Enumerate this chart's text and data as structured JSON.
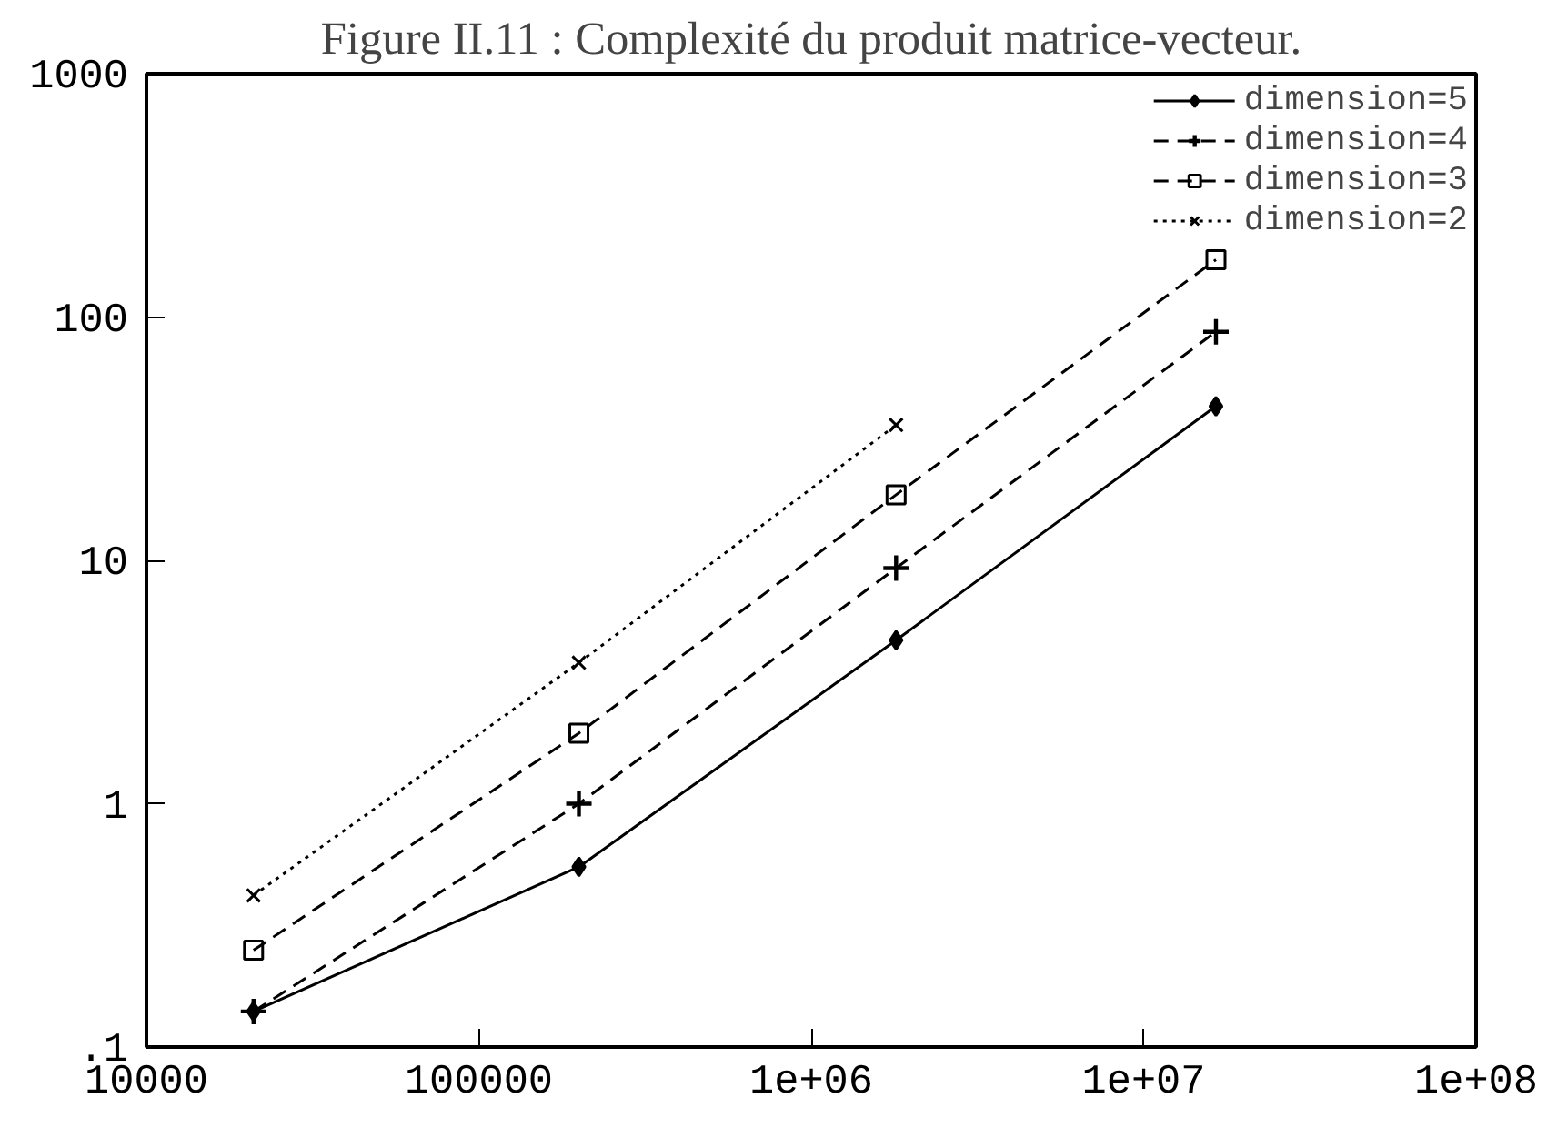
{
  "chart_data": {
    "type": "line",
    "title": "Figure II.11 : Complexité du produit matrice-vecteur.",
    "log": "xy",
    "xlim": [
      10000,
      100000000
    ],
    "ylim": [
      0.1,
      1000
    ],
    "xticks": [
      10000,
      100000,
      {
        "value": 1000000,
        "label": "1e+06"
      },
      {
        "value": 10000000,
        "label": "1e+07"
      },
      {
        "value": 100000000,
        "label": "1e+08"
      }
    ],
    "yticks": [
      {
        "value": 0.1,
        "label": ".1"
      },
      1,
      10,
      100,
      1000
    ],
    "grid": false,
    "legend": "top right",
    "series": [
      {
        "name": "dimension=5",
        "color": "#000000",
        "marker": "diamond",
        "line_style": "solid",
        "x": [
          21000,
          200000,
          1800000,
          16500000
        ],
        "values": [
          0.14,
          0.55,
          4.7,
          43
        ]
      },
      {
        "name": "dimension=4",
        "color": "#000000",
        "marker": "cross",
        "line_style": "dashed",
        "x": [
          21000,
          200000,
          1800000,
          16500000
        ],
        "values": [
          0.14,
          1.0,
          9.3,
          87
        ]
      },
      {
        "name": "dimension=3",
        "color": "#000000",
        "marker": "square",
        "line_style": "dashed",
        "x": [
          21000,
          200000,
          1800000,
          16500000
        ],
        "values": [
          0.25,
          1.95,
          18.6,
          172
        ]
      },
      {
        "name": "dimension=2",
        "color": "#000000",
        "marker": "x",
        "line_style": "dotted",
        "x": [
          21000,
          200000,
          1800000
        ],
        "values": [
          0.42,
          3.8,
          36
        ]
      }
    ]
  }
}
